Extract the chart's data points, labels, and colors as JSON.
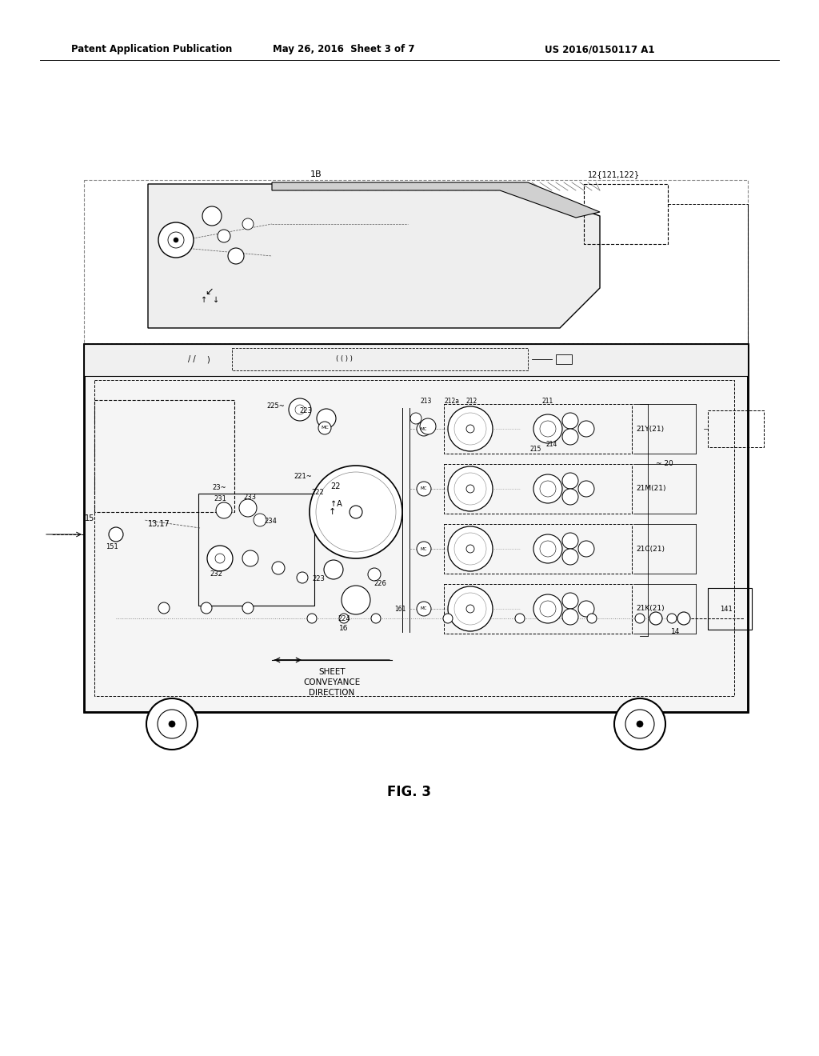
{
  "header_left": "Patent Application Publication",
  "header_mid": "May 26, 2016  Sheet 3 of 7",
  "header_right": "US 2016/0150117 A1",
  "footer_label": "FIG. 3",
  "bg_color": "#ffffff",
  "line_color": "#000000",
  "fig_width": 10.24,
  "fig_height": 13.2
}
